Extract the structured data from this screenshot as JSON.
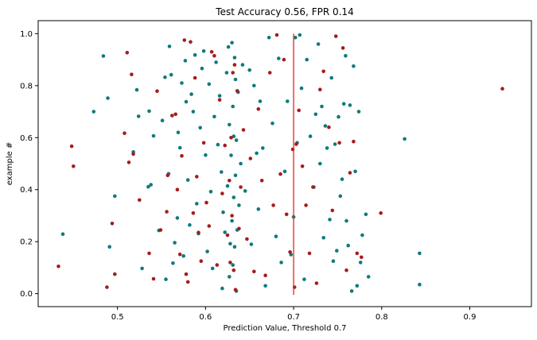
{
  "chart_data": {
    "type": "scatter",
    "title": "Test Accuracy 0.56, FPR 0.14",
    "xlabel": "Prediction Value, Threshold 0.7",
    "ylabel": "example #",
    "xlim": [
      0.41,
      0.97
    ],
    "ylim": [
      -0.05,
      1.05
    ],
    "xticks": [
      0.5,
      0.6,
      0.7,
      0.8,
      0.9
    ],
    "xtick_labels": [
      "0.5",
      "0.6",
      "0.7",
      "0.8",
      "0.9"
    ],
    "yticks": [
      0.0,
      0.2,
      0.4,
      0.6,
      0.8,
      1.0
    ],
    "ytick_labels": [
      "0.0",
      "0.2",
      "0.4",
      "0.6",
      "0.8",
      "1.0"
    ],
    "grid": false,
    "threshold": 0.7,
    "threshold_color": "#e8261e",
    "series": [
      {
        "color": "#0e7b7b",
        "points": [
          [
            0.484,
            0.914
          ],
          [
            0.489,
            0.752
          ],
          [
            0.473,
            0.7
          ],
          [
            0.438,
            0.229
          ],
          [
            0.491,
            0.18
          ],
          [
            0.497,
            0.375
          ],
          [
            0.518,
            0.545
          ],
          [
            0.522,
            0.784
          ],
          [
            0.524,
            0.682
          ],
          [
            0.528,
            0.097
          ],
          [
            0.535,
            0.411
          ],
          [
            0.536,
            0.702
          ],
          [
            0.538,
            0.419
          ],
          [
            0.541,
            0.607
          ],
          [
            0.547,
            0.243
          ],
          [
            0.551,
            0.666
          ],
          [
            0.554,
            0.832
          ],
          [
            0.555,
            0.055
          ],
          [
            0.558,
            0.461
          ],
          [
            0.559,
            0.951
          ],
          [
            0.561,
            0.842
          ],
          [
            0.563,
            0.117
          ],
          [
            0.565,
            0.196
          ],
          [
            0.568,
            0.291
          ],
          [
            0.569,
            0.62
          ],
          [
            0.571,
            0.561
          ],
          [
            0.573,
            0.81
          ],
          [
            0.575,
            0.145
          ],
          [
            0.577,
            0.896
          ],
          [
            0.578,
            0.738
          ],
          [
            0.58,
            0.437
          ],
          [
            0.582,
            0.264
          ],
          [
            0.584,
            0.767
          ],
          [
            0.586,
            0.7
          ],
          [
            0.588,
            0.918
          ],
          [
            0.59,
            0.346
          ],
          [
            0.592,
            0.231
          ],
          [
            0.594,
            0.638
          ],
          [
            0.596,
            0.866
          ],
          [
            0.598,
            0.933
          ],
          [
            0.6,
            0.533
          ],
          [
            0.602,
            0.162
          ],
          [
            0.604,
            0.806
          ],
          [
            0.606,
            0.392
          ],
          [
            0.608,
            0.097
          ],
          [
            0.61,
            0.681
          ],
          [
            0.612,
            0.89
          ],
          [
            0.614,
            0.573
          ],
          [
            0.616,
            0.761
          ],
          [
            0.618,
            0.468
          ],
          [
            0.619,
            0.02
          ],
          [
            0.62,
            0.313
          ],
          [
            0.622,
            0.236
          ],
          [
            0.624,
            0.85
          ],
          [
            0.625,
            0.414
          ],
          [
            0.626,
            0.949
          ],
          [
            0.627,
            0.65
          ],
          [
            0.627,
            0.065
          ],
          [
            0.628,
            0.192
          ],
          [
            0.629,
            0.532
          ],
          [
            0.63,
            0.965
          ],
          [
            0.63,
            0.28
          ],
          [
            0.631,
            0.72
          ],
          [
            0.631,
            0.11
          ],
          [
            0.632,
            0.605
          ],
          [
            0.632,
            0.37
          ],
          [
            0.633,
            0.908
          ],
          [
            0.633,
            0.18
          ],
          [
            0.634,
            0.824
          ],
          [
            0.634,
            0.455
          ],
          [
            0.635,
            0.01
          ],
          [
            0.635,
            0.59
          ],
          [
            0.636,
            0.245
          ],
          [
            0.637,
            0.775
          ],
          [
            0.638,
            0.34
          ],
          [
            0.64,
            0.5
          ],
          [
            0.642,
            0.88
          ],
          [
            0.645,
            0.395
          ],
          [
            0.65,
            0.86
          ],
          [
            0.652,
            0.19
          ],
          [
            0.655,
            0.8
          ],
          [
            0.658,
            0.54
          ],
          [
            0.66,
            0.325
          ],
          [
            0.662,
            0.74
          ],
          [
            0.665,
            0.56
          ],
          [
            0.668,
            0.03
          ],
          [
            0.672,
            0.985
          ],
          [
            0.676,
            0.655
          ],
          [
            0.68,
            0.22
          ],
          [
            0.683,
            0.905
          ],
          [
            0.686,
            0.12
          ],
          [
            0.69,
            0.47
          ],
          [
            0.693,
            0.74
          ],
          [
            0.697,
            0.15
          ],
          [
            0.7,
            0.295
          ],
          [
            0.702,
            0.985
          ],
          [
            0.704,
            0.58
          ],
          [
            0.707,
            0.995
          ],
          [
            0.709,
            0.79
          ],
          [
            0.712,
            0.055
          ],
          [
            0.715,
            0.9
          ],
          [
            0.719,
            0.605
          ],
          [
            0.723,
            0.41
          ],
          [
            0.725,
            0.69
          ],
          [
            0.728,
            0.96
          ],
          [
            0.73,
            0.5
          ],
          [
            0.732,
            0.72
          ],
          [
            0.734,
            0.215
          ],
          [
            0.736,
            0.645
          ],
          [
            0.738,
            0.56
          ],
          [
            0.741,
            0.285
          ],
          [
            0.743,
            0.83
          ],
          [
            0.745,
            0.125
          ],
          [
            0.747,
            0.575
          ],
          [
            0.749,
            0.165
          ],
          [
            0.751,
            0.68
          ],
          [
            0.753,
            0.375
          ],
          [
            0.755,
            0.44
          ],
          [
            0.757,
            0.73
          ],
          [
            0.759,
            0.915
          ],
          [
            0.76,
            0.28
          ],
          [
            0.762,
            0.185
          ],
          [
            0.764,
            0.725
          ],
          [
            0.766,
            0.01
          ],
          [
            0.768,
            0.875
          ],
          [
            0.77,
            0.47
          ],
          [
            0.772,
            0.03
          ],
          [
            0.774,
            0.7
          ],
          [
            0.776,
            0.12
          ],
          [
            0.778,
            0.225
          ],
          [
            0.782,
            0.305
          ],
          [
            0.785,
            0.065
          ],
          [
            0.826,
            0.595
          ],
          [
            0.843,
            0.155
          ],
          [
            0.843,
            0.035
          ]
        ]
      },
      {
        "color": "#a61c1c",
        "points": [
          [
            0.433,
            0.105
          ],
          [
            0.448,
            0.567
          ],
          [
            0.45,
            0.49
          ],
          [
            0.488,
            0.025
          ],
          [
            0.494,
            0.27
          ],
          [
            0.497,
            0.075
          ],
          [
            0.508,
            0.617
          ],
          [
            0.511,
            0.927
          ],
          [
            0.513,
            0.505
          ],
          [
            0.516,
            0.843
          ],
          [
            0.518,
            0.537
          ],
          [
            0.525,
            0.36
          ],
          [
            0.536,
            0.155
          ],
          [
            0.541,
            0.057
          ],
          [
            0.545,
            0.779
          ],
          [
            0.549,
            0.245
          ],
          [
            0.556,
            0.315
          ],
          [
            0.557,
            0.455
          ],
          [
            0.562,
            0.685
          ],
          [
            0.566,
            0.69
          ],
          [
            0.568,
            0.4
          ],
          [
            0.571,
            0.151
          ],
          [
            0.573,
            0.53
          ],
          [
            0.576,
            0.975
          ],
          [
            0.578,
            0.075
          ],
          [
            0.58,
            0.045
          ],
          [
            0.583,
            0.968
          ],
          [
            0.586,
            0.31
          ],
          [
            0.588,
            0.83
          ],
          [
            0.59,
            0.45
          ],
          [
            0.592,
            0.235
          ],
          [
            0.595,
            0.125
          ],
          [
            0.598,
            0.58
          ],
          [
            0.601,
            0.35
          ],
          [
            0.604,
            0.26
          ],
          [
            0.607,
            0.93
          ],
          [
            0.61,
            0.915
          ],
          [
            0.613,
            0.11
          ],
          [
            0.616,
            0.745
          ],
          [
            0.619,
            0.385
          ],
          [
            0.622,
            0.57
          ],
          [
            0.625,
            0.225
          ],
          [
            0.627,
            0.435
          ],
          [
            0.628,
            0.12
          ],
          [
            0.629,
            0.6
          ],
          [
            0.63,
            0.3
          ],
          [
            0.631,
            0.85
          ],
          [
            0.632,
            0.09
          ],
          [
            0.633,
            0.88
          ],
          [
            0.634,
            0.015
          ],
          [
            0.636,
            0.78
          ],
          [
            0.638,
            0.25
          ],
          [
            0.64,
            0.41
          ],
          [
            0.643,
            0.63
          ],
          [
            0.647,
            0.21
          ],
          [
            0.651,
            0.52
          ],
          [
            0.655,
            0.085
          ],
          [
            0.66,
            0.71
          ],
          [
            0.664,
            0.435
          ],
          [
            0.668,
            0.07
          ],
          [
            0.673,
            0.85
          ],
          [
            0.677,
            0.34
          ],
          [
            0.681,
            0.995
          ],
          [
            0.685,
            0.46
          ],
          [
            0.689,
            0.9
          ],
          [
            0.692,
            0.305
          ],
          [
            0.696,
            0.16
          ],
          [
            0.699,
            0.555
          ],
          [
            0.701,
            0.025
          ],
          [
            0.703,
            0.575
          ],
          [
            0.706,
            0.705
          ],
          [
            0.71,
            0.49
          ],
          [
            0.714,
            0.34
          ],
          [
            0.718,
            0.155
          ],
          [
            0.722,
            0.41
          ],
          [
            0.726,
            0.04
          ],
          [
            0.73,
            0.785
          ],
          [
            0.734,
            0.855
          ],
          [
            0.74,
            0.64
          ],
          [
            0.744,
            0.32
          ],
          [
            0.748,
            0.99
          ],
          [
            0.752,
            0.58
          ],
          [
            0.756,
            0.945
          ],
          [
            0.76,
            0.09
          ],
          [
            0.764,
            0.465
          ],
          [
            0.768,
            0.585
          ],
          [
            0.772,
            0.155
          ],
          [
            0.777,
            0.14
          ],
          [
            0.799,
            0.31
          ],
          [
            0.937,
            0.788
          ]
        ]
      }
    ]
  }
}
